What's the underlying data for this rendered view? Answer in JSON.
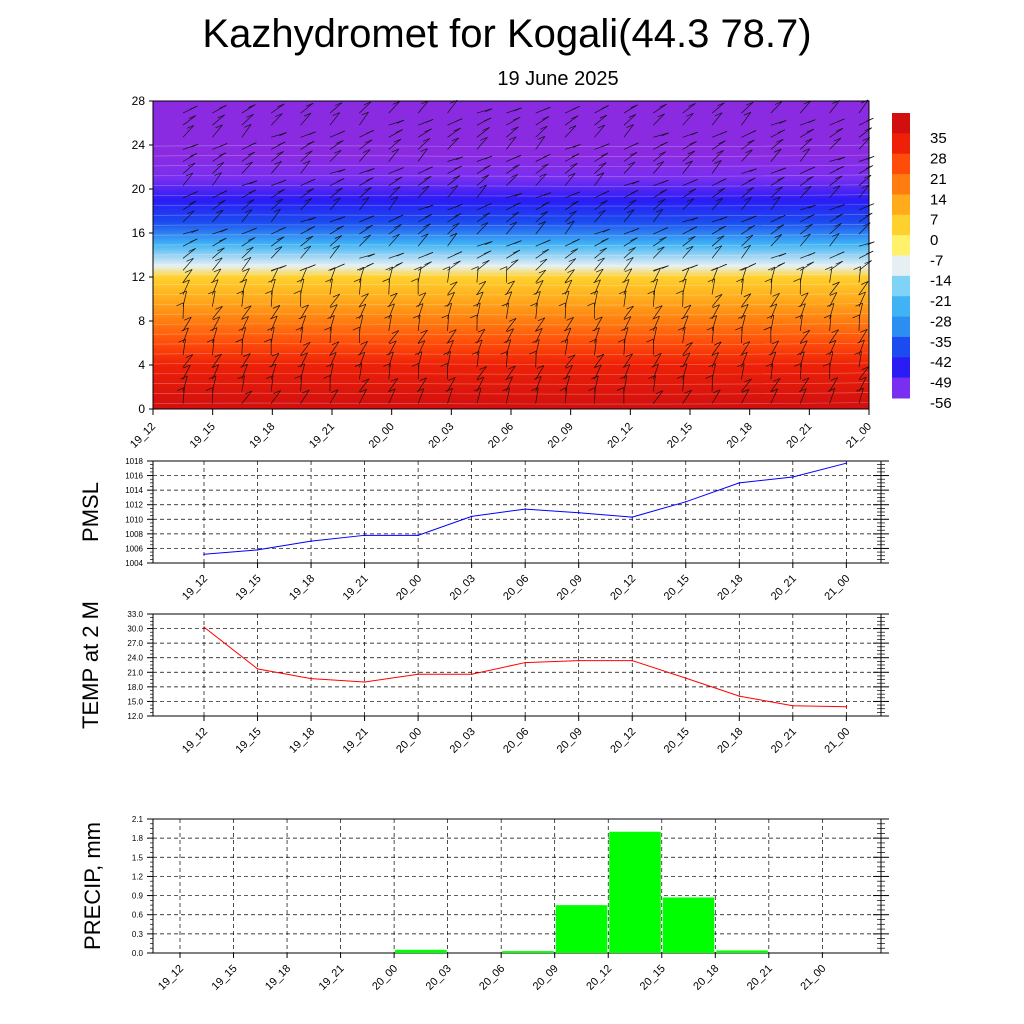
{
  "title": "Kazhydromet for Kogali(44.3 78.7)",
  "subtitle": "19 June 2025",
  "time_labels": [
    "19_12",
    "19_15",
    "19_18",
    "19_21",
    "20_00",
    "20_03",
    "20_06",
    "20_09",
    "20_12",
    "20_15",
    "20_18",
    "20_21",
    "21_00"
  ],
  "chart_data": [
    {
      "type": "heatmap",
      "y_ticks": [
        0,
        4,
        8,
        12,
        16,
        20,
        24,
        28
      ],
      "ylim": [
        0,
        28
      ],
      "x_categories": [
        "19_12",
        "19_15",
        "19_18",
        "19_21",
        "20_00",
        "20_03",
        "20_06",
        "20_09",
        "20_12",
        "20_15",
        "20_18",
        "20_21",
        "21_00"
      ],
      "colorbar_labels": [
        "35",
        "28",
        "21",
        "14",
        "7",
        "0",
        "-7",
        "-14",
        "-21",
        "-28",
        "-35",
        "-42",
        "-49",
        "-56"
      ],
      "temperature_profile": [
        {
          "level": 0,
          "value": 33
        },
        {
          "level": 4,
          "value": 28
        },
        {
          "level": 6,
          "value": 21
        },
        {
          "level": 8,
          "value": 14
        },
        {
          "level": 10,
          "value": 7
        },
        {
          "level": 12,
          "value": 0
        },
        {
          "level": 13,
          "value": -14
        },
        {
          "level": 15,
          "value": -28
        },
        {
          "level": 17,
          "value": -42
        },
        {
          "level": 19,
          "value": -52
        },
        {
          "level": 21,
          "value": -58
        },
        {
          "level": 23,
          "value": -60
        },
        {
          "level": 28,
          "value": -60
        }
      ],
      "overlay": "wind barbs"
    },
    {
      "type": "line",
      "ylabel": "PMSL",
      "categories": [
        "19_12",
        "19_15",
        "19_18",
        "19_21",
        "20_00",
        "20_03",
        "20_06",
        "20_09",
        "20_12",
        "20_15",
        "20_18",
        "20_21",
        "21_00"
      ],
      "values": [
        1005.2,
        1005.8,
        1007.0,
        1007.8,
        1007.8,
        1010.4,
        1011.4,
        1010.9,
        1010.3,
        1012.4,
        1015.0,
        1015.8,
        1017.7
      ],
      "ylim": [
        1004,
        1018
      ],
      "y_ticks": [
        1004,
        1006,
        1008,
        1010,
        1012,
        1014,
        1016,
        1018
      ],
      "y_tick_labels": [
        "1004",
        "1006",
        "1008",
        "1010",
        "1012",
        "1014",
        "1016",
        "1018"
      ],
      "color": "#0000ff",
      "grid": true
    },
    {
      "type": "line",
      "ylabel": "TEMP at 2 M",
      "categories": [
        "19_12",
        "19_15",
        "19_18",
        "19_21",
        "20_00",
        "20_03",
        "20_06",
        "20_09",
        "20_12",
        "20_15",
        "20_18",
        "20_21",
        "21_00"
      ],
      "values": [
        30.3,
        21.7,
        19.7,
        19.0,
        20.6,
        20.6,
        23.0,
        23.4,
        23.4,
        19.8,
        16.1,
        14.1,
        13.9
      ],
      "ylim": [
        12,
        33
      ],
      "y_ticks": [
        12,
        15,
        18,
        21,
        24,
        27,
        30,
        33
      ],
      "y_tick_labels": [
        "12.0",
        "15.0",
        "18.0",
        "21.0",
        "24.0",
        "27.0",
        "30.0",
        "33.0"
      ],
      "color": "#ff0000",
      "grid": true
    },
    {
      "type": "bar",
      "ylabel": "PRECIP, mm",
      "categories": [
        "19_12",
        "19_15",
        "19_18",
        "19_21",
        "20_00",
        "20_03",
        "20_06",
        "20_09",
        "20_12",
        "20_15",
        "20_18",
        "20_21",
        "21_00"
      ],
      "bars": [
        {
          "from": "20_00",
          "to": "20_03",
          "value": 0.05
        },
        {
          "from": "20_06",
          "to": "20_09",
          "value": 0.03
        },
        {
          "from": "20_09",
          "to": "20_12",
          "value": 0.75
        },
        {
          "from": "20_12",
          "to": "20_15",
          "value": 1.9
        },
        {
          "from": "20_15",
          "to": "20_18",
          "value": 0.87
        },
        {
          "from": "20_18",
          "to": "20_21",
          "value": 0.04
        }
      ],
      "ylim": [
        0,
        2.1
      ],
      "y_ticks": [
        0,
        0.3,
        0.6,
        0.9,
        1.2,
        1.5,
        1.8,
        2.1
      ],
      "y_tick_labels": [
        "0.0",
        "0.3",
        "0.6",
        "0.9",
        "1.2",
        "1.5",
        "1.8",
        "2.1"
      ],
      "color": "#00ff00",
      "grid": true
    }
  ]
}
